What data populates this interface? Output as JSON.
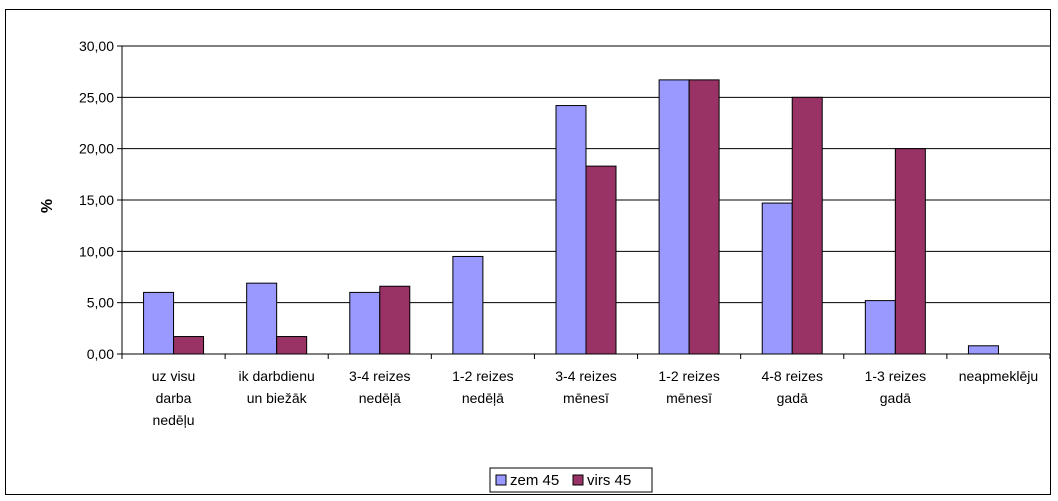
{
  "chart_data": {
    "type": "bar",
    "title": "",
    "xlabel": "",
    "ylabel": "%",
    "ylim": [
      0,
      30
    ],
    "yticks": [
      "0,00",
      "5,00",
      "10,00",
      "15,00",
      "20,00",
      "25,00",
      "30,00"
    ],
    "grid": true,
    "legend_position": "bottom",
    "categories": [
      [
        "uz visu",
        "darba",
        "nedēļu"
      ],
      [
        "ik darbdienu",
        "un biežāk"
      ],
      [
        "3-4 reizes",
        "nedēļā"
      ],
      [
        "1-2 reizes",
        "nedēļā"
      ],
      [
        "3-4 reizes",
        "mēnesī"
      ],
      [
        "1-2 reizes",
        "mēnesī"
      ],
      [
        "4-8 reizes",
        "gadā"
      ],
      [
        "1-3 reizes",
        "gadā"
      ],
      [
        "neapmeklēju"
      ]
    ],
    "series": [
      {
        "name": "zem 45",
        "color": "#9999ff",
        "values": [
          6.0,
          6.9,
          6.0,
          9.5,
          24.2,
          26.7,
          14.7,
          5.2,
          0.8
        ]
      },
      {
        "name": "virs 45",
        "color": "#993366",
        "values": [
          1.7,
          1.7,
          6.6,
          0.0,
          18.3,
          26.7,
          25.0,
          20.0,
          0.0
        ]
      }
    ]
  }
}
